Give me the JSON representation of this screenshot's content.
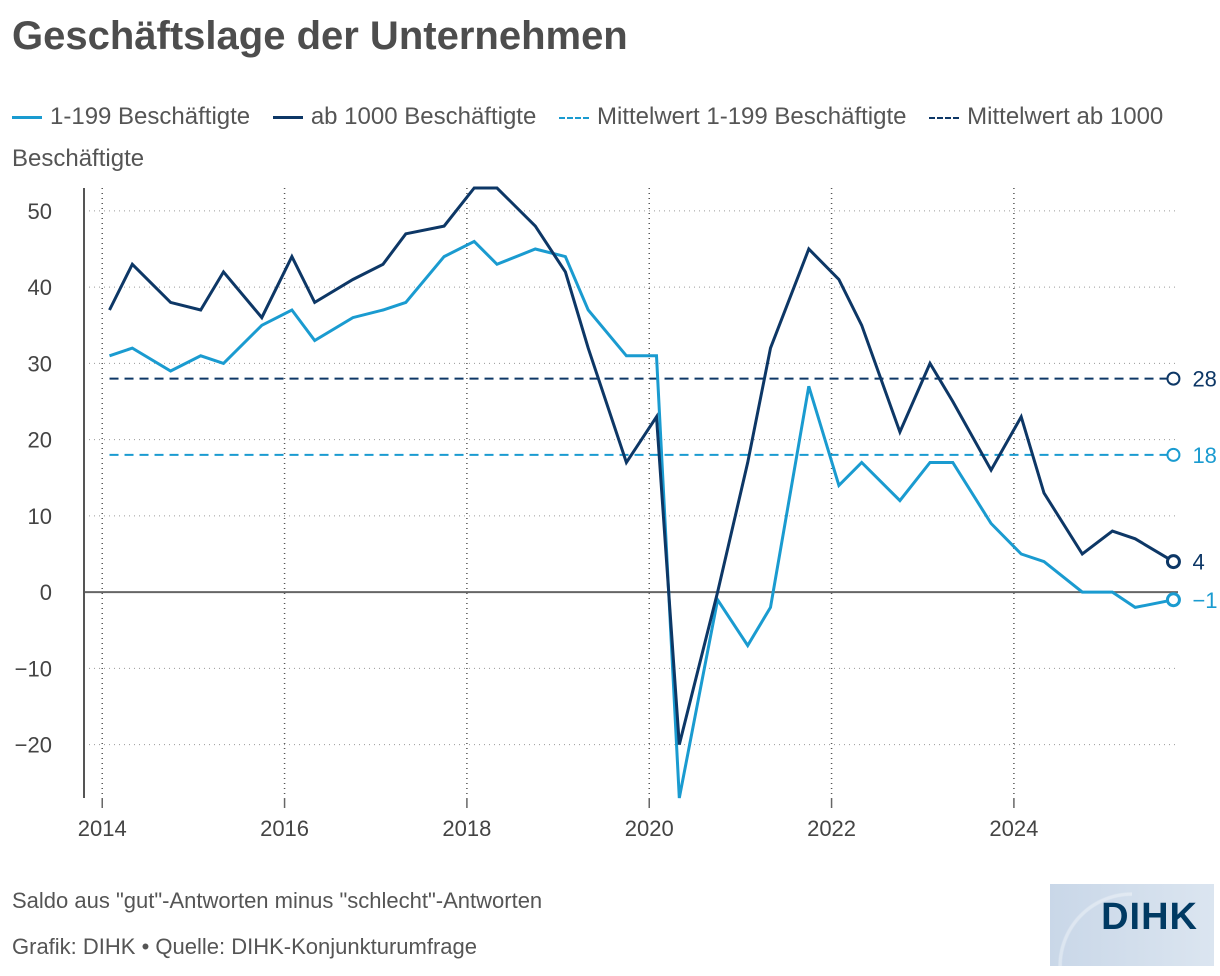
{
  "chart_data": {
    "type": "line",
    "title": "Geschäftslage der Unternehmen",
    "ylim": [
      -27,
      53
    ],
    "xlim": [
      2013.8,
      2025.8
    ],
    "yticks": [
      50,
      40,
      30,
      20,
      10,
      0,
      -10,
      -20
    ],
    "ytick_labels": [
      "50",
      "40",
      "30",
      "20",
      "10",
      "0",
      "−10",
      "−20"
    ],
    "xticks": [
      2014,
      2016,
      2018,
      2020,
      2022,
      2024
    ],
    "xtick_labels": [
      "2014",
      "2016",
      "2018",
      "2020",
      "2022",
      "2024"
    ],
    "grid": "dotted",
    "legend_position": "top",
    "series": [
      {
        "name": "1-199 Beschäftigte",
        "color": "#1a9bd0",
        "end_label": "−1",
        "points": [
          [
            2014.08,
            31
          ],
          [
            2014.33,
            32
          ],
          [
            2014.75,
            29
          ],
          [
            2015.08,
            31
          ],
          [
            2015.33,
            30
          ],
          [
            2015.75,
            35
          ],
          [
            2016.08,
            37
          ],
          [
            2016.33,
            33
          ],
          [
            2016.75,
            36
          ],
          [
            2017.08,
            37
          ],
          [
            2017.33,
            38
          ],
          [
            2017.75,
            44
          ],
          [
            2018.08,
            46
          ],
          [
            2018.33,
            43
          ],
          [
            2018.75,
            45
          ],
          [
            2019.08,
            44
          ],
          [
            2019.33,
            37
          ],
          [
            2019.75,
            31
          ],
          [
            2020.08,
            31
          ],
          [
            2020.33,
            -27
          ],
          [
            2020.75,
            -1
          ],
          [
            2021.08,
            -7
          ],
          [
            2021.33,
            -2
          ],
          [
            2021.75,
            27
          ],
          [
            2022.08,
            14
          ],
          [
            2022.33,
            17
          ],
          [
            2022.75,
            12
          ],
          [
            2023.08,
            17
          ],
          [
            2023.33,
            17
          ],
          [
            2023.75,
            9
          ],
          [
            2024.08,
            5
          ],
          [
            2024.33,
            4
          ],
          [
            2024.75,
            0
          ],
          [
            2025.08,
            0
          ],
          [
            2025.33,
            -2
          ],
          [
            2025.75,
            -1
          ]
        ]
      },
      {
        "name": "ab 1000 Beschäftigte",
        "color": "#0d3766",
        "end_label": "4",
        "points": [
          [
            2014.08,
            37
          ],
          [
            2014.33,
            43
          ],
          [
            2014.75,
            38
          ],
          [
            2015.08,
            37
          ],
          [
            2015.33,
            42
          ],
          [
            2015.75,
            36
          ],
          [
            2016.08,
            44
          ],
          [
            2016.33,
            38
          ],
          [
            2016.75,
            41
          ],
          [
            2017.08,
            43
          ],
          [
            2017.33,
            47
          ],
          [
            2017.75,
            48
          ],
          [
            2018.08,
            53
          ],
          [
            2018.33,
            53
          ],
          [
            2018.75,
            48
          ],
          [
            2019.08,
            42
          ],
          [
            2019.33,
            32
          ],
          [
            2019.75,
            17
          ],
          [
            2020.08,
            23
          ],
          [
            2020.33,
            -20
          ],
          [
            2020.75,
            0
          ],
          [
            2021.08,
            17
          ],
          [
            2021.33,
            32
          ],
          [
            2021.75,
            45
          ],
          [
            2022.08,
            41
          ],
          [
            2022.33,
            35
          ],
          [
            2022.75,
            21
          ],
          [
            2023.08,
            30
          ],
          [
            2023.33,
            25
          ],
          [
            2023.75,
            16
          ],
          [
            2024.08,
            23
          ],
          [
            2024.33,
            13
          ],
          [
            2024.75,
            5
          ],
          [
            2025.08,
            8
          ],
          [
            2025.33,
            7
          ],
          [
            2025.75,
            4
          ]
        ]
      },
      {
        "name": "Mittelwert 1-199 Beschäftigte",
        "color": "#1a9bd0",
        "dashed": true,
        "value": 18,
        "end_label": "18"
      },
      {
        "name": "Mittelwert ab 1000 Beschäftigte",
        "color": "#0d3766",
        "dashed": true,
        "value": 28,
        "end_label": "28"
      }
    ]
  },
  "footer": {
    "note": "Saldo aus \"gut\"-Antworten minus \"schlecht\"-Antworten",
    "source": "Grafik: DIHK • Quelle: DIHK-Konjunkturumfrage"
  },
  "logo": {
    "text": "DIHK"
  }
}
